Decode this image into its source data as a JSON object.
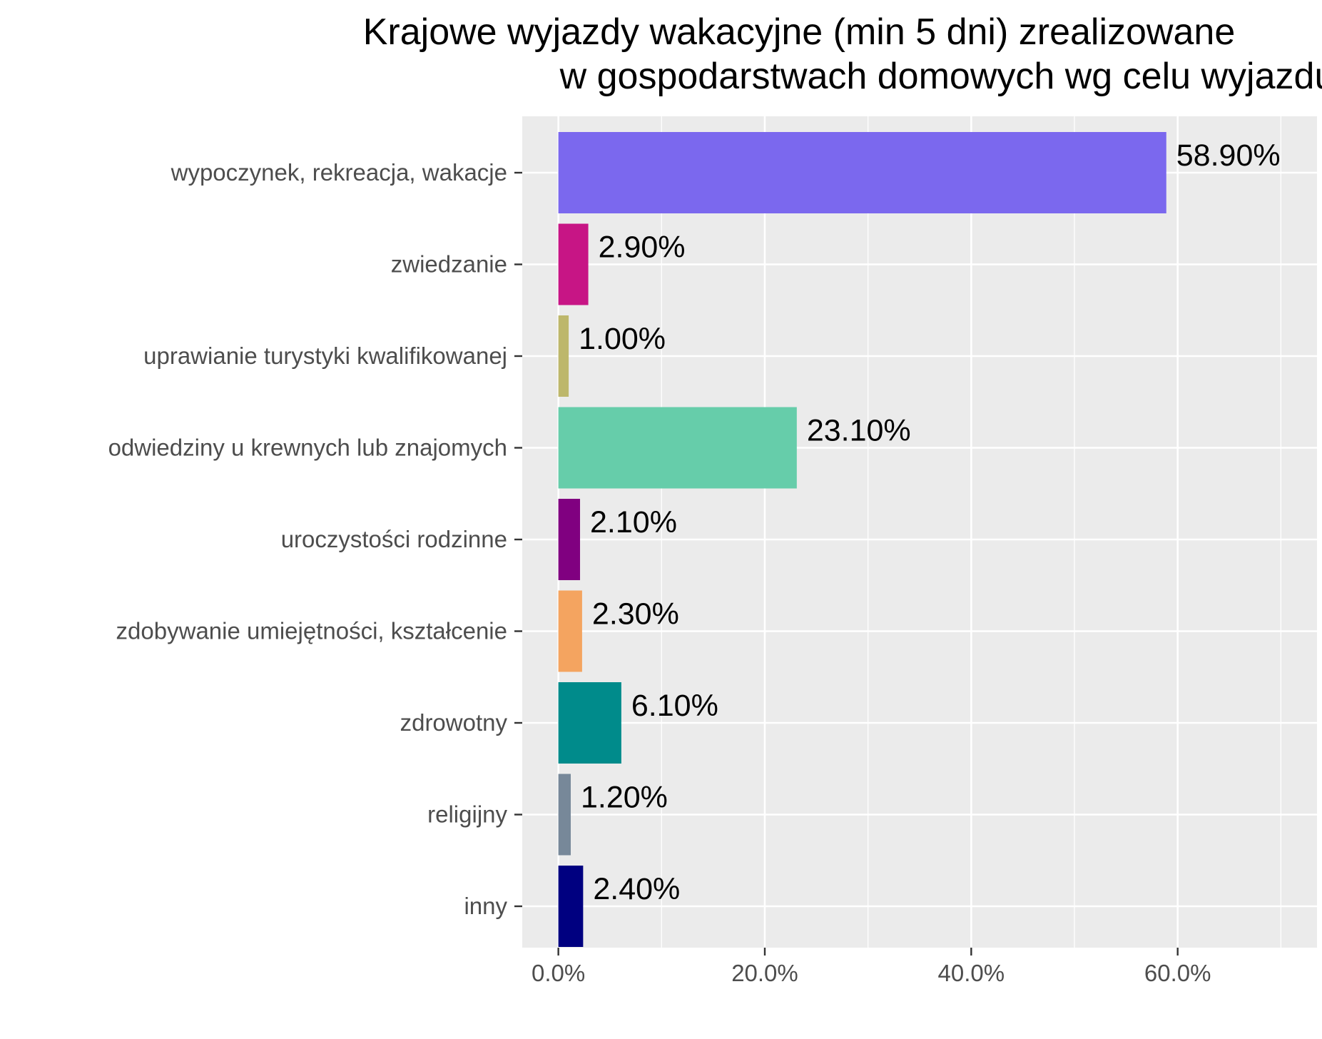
{
  "chart_data": {
    "type": "bar",
    "orientation": "horizontal",
    "title_lines": [
      "Krajowe wyjazdy wakacyjne (min 5 dni) zrealizowane",
      "w gospodarstwach domowych wg celu wyjazdu"
    ],
    "categories": [
      "wypoczynek, rekreacja, wakacje",
      "zwiedzanie",
      "uprawianie turystyki kwalifikowanej",
      "odwiedziny u krewnych lub znajomych",
      "uroczystości rodzinne",
      "zdobywanie umiejętności, kształcenie",
      "zdrowotny",
      "religijny",
      "inny"
    ],
    "values": [
      58.9,
      2.9,
      1.0,
      23.1,
      2.1,
      2.3,
      6.1,
      1.2,
      2.4
    ],
    "value_labels": [
      "58.90%",
      "2.90%",
      "1.00%",
      "23.10%",
      "2.10%",
      "2.30%",
      "6.10%",
      "1.20%",
      "2.40%"
    ],
    "colors": [
      "#7B68EE",
      "#C71585",
      "#BDB76B",
      "#66CDAA",
      "#800080",
      "#F4A460",
      "#008B8B",
      "#778899",
      "#000080"
    ],
    "x_ticks": [
      0,
      20,
      40,
      60
    ],
    "x_tick_labels": [
      "0.0%",
      "20.0%",
      "40.0%",
      "60.0%"
    ],
    "xlim": [
      -3.5,
      73.5
    ],
    "xlabel": "",
    "ylabel": "",
    "grid": true,
    "legend": "none",
    "panel_background": "#EBEBEB",
    "grid_color": "#FFFFFF"
  }
}
